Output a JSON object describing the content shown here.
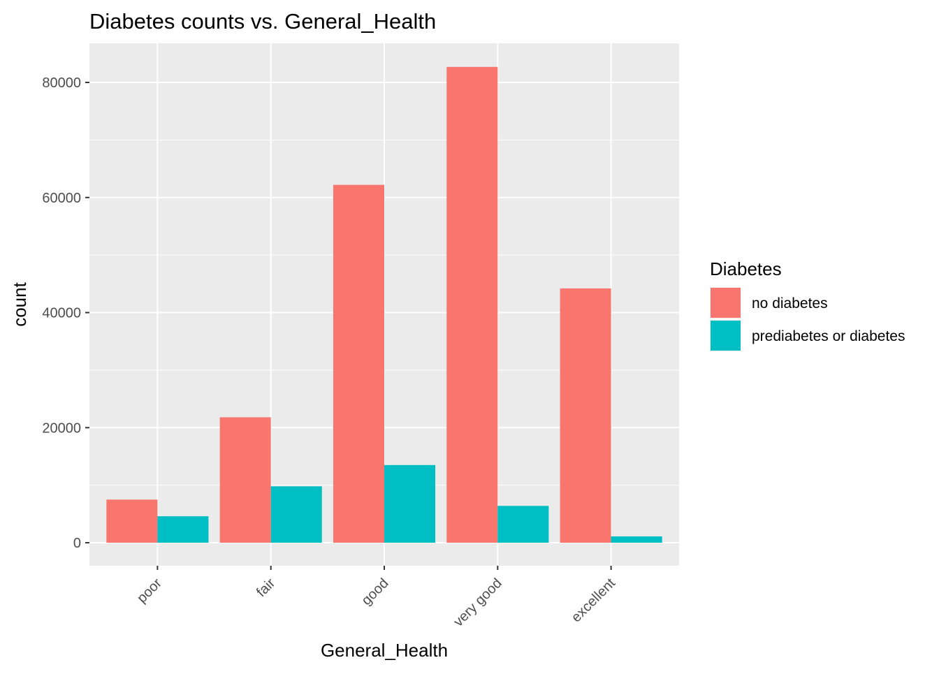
{
  "chart_data": {
    "type": "bar",
    "title": "Diabetes counts vs. General_Health",
    "xlabel": "General_Health",
    "ylabel": "count",
    "categories": [
      "poor",
      "fair",
      "good",
      "very good",
      "excellent"
    ],
    "series": [
      {
        "name": "no diabetes",
        "color": "#F8766D",
        "values": [
          7500,
          21800,
          62200,
          82700,
          44200
        ]
      },
      {
        "name": "prediabetes or diabetes",
        "color": "#00BFC4",
        "values": [
          4600,
          9800,
          13500,
          6400,
          1100
        ]
      }
    ],
    "ylim": [
      -4000,
      86800
    ],
    "yticks": [
      0,
      20000,
      40000,
      60000,
      80000
    ],
    "ytick_labels": [
      "0",
      "20000",
      "40000",
      "60000",
      "80000"
    ],
    "grid": true,
    "legend": {
      "title": "Diabetes",
      "position": "right"
    },
    "panel_color": "#EBEBEB",
    "grid_color": "#FFFFFF"
  }
}
